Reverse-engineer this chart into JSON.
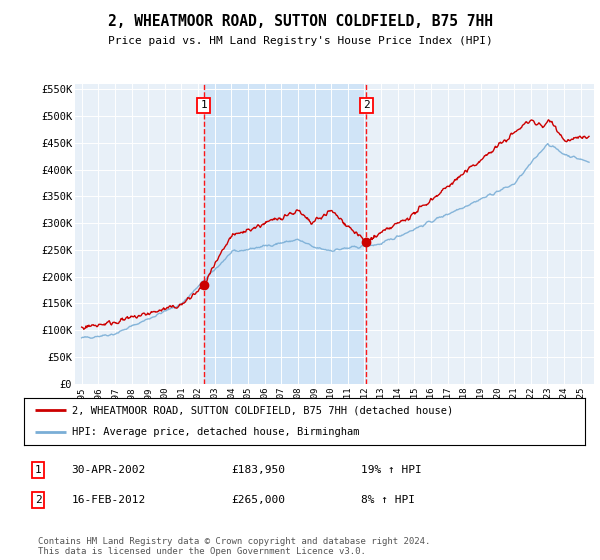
{
  "title": "2, WHEATMOOR ROAD, SUTTON COLDFIELD, B75 7HH",
  "subtitle": "Price paid vs. HM Land Registry's House Price Index (HPI)",
  "ylim": [
    0,
    560000
  ],
  "yticks": [
    0,
    50000,
    100000,
    150000,
    200000,
    250000,
    300000,
    350000,
    400000,
    450000,
    500000,
    550000
  ],
  "ytick_labels": [
    "£0",
    "£50K",
    "£100K",
    "£150K",
    "£200K",
    "£250K",
    "£300K",
    "£350K",
    "£400K",
    "£450K",
    "£500K",
    "£550K"
  ],
  "x_start_year": 1995,
  "x_end_year": 2025,
  "plot_bg_color": "#e8f0f8",
  "shade_color": "#d0e4f7",
  "red_line_color": "#cc0000",
  "blue_line_color": "#7aaed6",
  "sale1_year": 2002.33,
  "sale1_price": 183950,
  "sale2_year": 2012.12,
  "sale2_price": 265000,
  "legend_red_label": "2, WHEATMOOR ROAD, SUTTON COLDFIELD, B75 7HH (detached house)",
  "legend_blue_label": "HPI: Average price, detached house, Birmingham",
  "note1_date": "30-APR-2002",
  "note1_price": "£183,950",
  "note1_hpi": "19% ↑ HPI",
  "note2_date": "16-FEB-2012",
  "note2_price": "£265,000",
  "note2_hpi": "8% ↑ HPI",
  "footer": "Contains HM Land Registry data © Crown copyright and database right 2024.\nThis data is licensed under the Open Government Licence v3.0."
}
